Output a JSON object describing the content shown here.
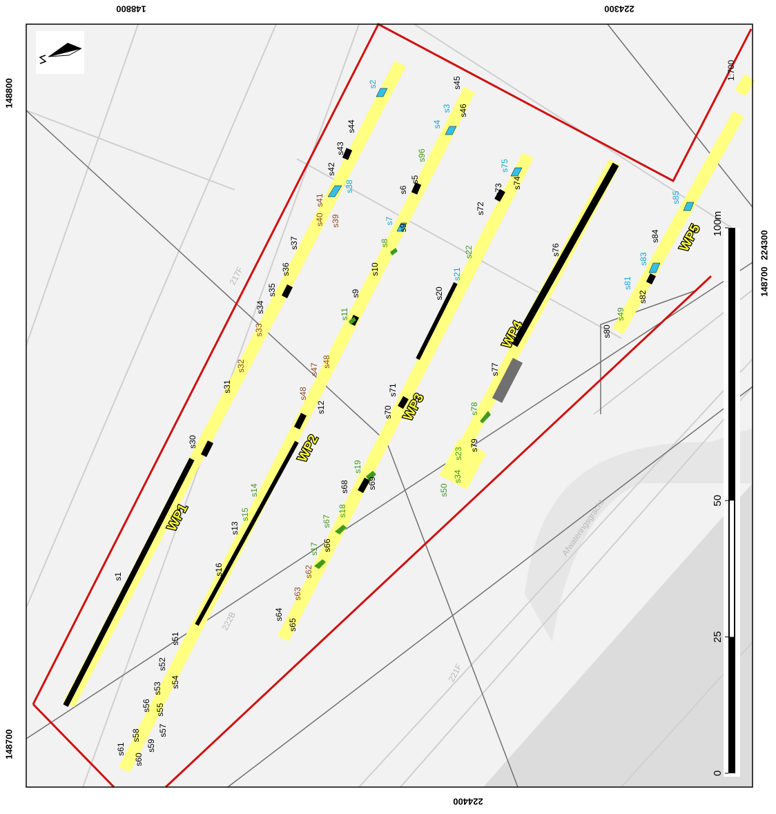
{
  "coordinates": {
    "top": [
      148800,
      224300
    ],
    "bottom": [
      224400
    ],
    "left": [
      148800,
      148700
    ],
    "right": [
      224300,
      148700
    ]
  },
  "scale_ratio": "1:700",
  "scale_bar": {
    "unit": "m",
    "ticks": [
      0,
      25,
      50,
      100
    ]
  },
  "trench_labels": [
    "WP1",
    "WP2",
    "WP3",
    "WP4",
    "WP5"
  ],
  "feature_groups": [
    {
      "color": "#000000",
      "labels": [
        "s1",
        "s13",
        "s16",
        "s51",
        "s52",
        "s53",
        "s54",
        "s55",
        "s56",
        "s57",
        "s58",
        "s59",
        "s60",
        "s61",
        "s64",
        "s65",
        "s66",
        "s12",
        "s9",
        "s10",
        "s6",
        "s5",
        "s20",
        "s71",
        "s70",
        "s69",
        "s68",
        "s72",
        "s73",
        "s74",
        "s76",
        "s77",
        "s79",
        "s80",
        "s82",
        "s84",
        "s31",
        "s30",
        "s34",
        "s35",
        "s36",
        "s37",
        "s42",
        "s43",
        "s44",
        "s45",
        "s46",
        "s9"
      ]
    },
    {
      "color": "#8b4a2b",
      "labels": [
        "s32",
        "s33",
        "s39",
        "s40",
        "s41",
        "s47",
        "s48",
        "s48",
        "s62",
        "s63"
      ]
    },
    {
      "color": "#3f9a1e",
      "labels": [
        "s8",
        "s11",
        "s14",
        "s15",
        "s17",
        "s18",
        "s19",
        "s22",
        "s23",
        "s34",
        "s50",
        "s67",
        "s78",
        "s96",
        "s49"
      ]
    },
    {
      "color": "#17a8c8",
      "labels": [
        "s2",
        "s3",
        "s4",
        "s7",
        "s21",
        "s38",
        "s75",
        "s81",
        "s83",
        "s85"
      ]
    }
  ],
  "road_labels": [
    "217F",
    "222B",
    "221F"
  ],
  "water_name": "Afwateringsgracht"
}
